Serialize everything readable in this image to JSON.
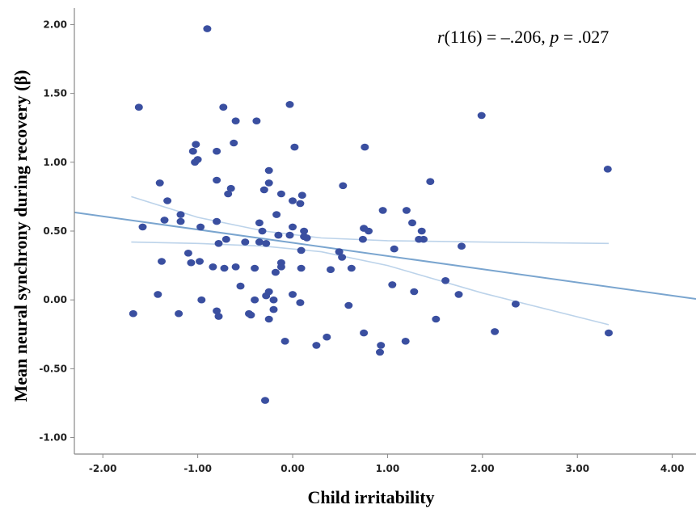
{
  "chart_data": {
    "type": "scatter",
    "title": "",
    "xlabel": "Child irritability",
    "ylabel": "Mean neural synchrony  during recovery  (β)",
    "annotation": {
      "r_symbol": "r",
      "r_value": "(116) = –.206, ",
      "p_symbol": "p",
      "p_value": " = .027"
    },
    "xlim": [
      -2.3,
      4.25
    ],
    "ylim": [
      -1.12,
      2.12
    ],
    "xticks": [
      -2,
      -1,
      0,
      1,
      2,
      3,
      4
    ],
    "xtick_labels": [
      "-2.00",
      "-1.00",
      "0.00",
      "1.00",
      "2.00",
      "3.00",
      "4.00"
    ],
    "yticks": [
      -1,
      -0.5,
      0,
      0.5,
      1,
      1.5,
      2
    ],
    "ytick_labels": [
      "-1.00",
      "-0.50",
      "0.00",
      "0.50",
      "1.00",
      "1.50",
      "2.00"
    ],
    "grid": false,
    "colors": {
      "points": "#3a4fa0",
      "fit_line": "#7aa5cf",
      "ci_band": "#bcd3ea",
      "axis": "#888888"
    },
    "fit_line": {
      "slope": -0.096,
      "intercept": 0.415
    },
    "ci_upper": {
      "x": [
        -1.7,
        -1.0,
        -0.3,
        0.3,
        1.0,
        2.0,
        3.33
      ],
      "y": [
        0.75,
        0.6,
        0.5,
        0.45,
        0.43,
        0.42,
        0.41
      ]
    },
    "ci_lower": {
      "x": [
        -1.7,
        -1.0,
        -0.3,
        0.3,
        1.0,
        2.0,
        3.33
      ],
      "y": [
        0.42,
        0.41,
        0.39,
        0.35,
        0.25,
        0.05,
        -0.18
      ]
    },
    "points": [
      [
        -0.9,
        1.97
      ],
      [
        -1.62,
        1.4
      ],
      [
        -0.73,
        1.4
      ],
      [
        -0.03,
        1.42
      ],
      [
        1.99,
        1.34
      ],
      [
        -0.6,
        1.3
      ],
      [
        -0.38,
        1.3
      ],
      [
        -0.62,
        1.14
      ],
      [
        -1.02,
        1.13
      ],
      [
        0.02,
        1.11
      ],
      [
        0.76,
        1.11
      ],
      [
        -1.05,
        1.08
      ],
      [
        -0.8,
        1.08
      ],
      [
        -1.0,
        1.02
      ],
      [
        -1.03,
        1.0
      ],
      [
        -0.25,
        0.94
      ],
      [
        3.32,
        0.95
      ],
      [
        -1.4,
        0.85
      ],
      [
        -0.8,
        0.87
      ],
      [
        -0.25,
        0.85
      ],
      [
        1.45,
        0.86
      ],
      [
        0.53,
        0.83
      ],
      [
        -0.65,
        0.81
      ],
      [
        -0.3,
        0.8
      ],
      [
        -0.68,
        0.77
      ],
      [
        -0.12,
        0.77
      ],
      [
        0.1,
        0.76
      ],
      [
        -1.32,
        0.72
      ],
      [
        0.0,
        0.72
      ],
      [
        0.08,
        0.7
      ],
      [
        0.95,
        0.65
      ],
      [
        1.2,
        0.65
      ],
      [
        -1.18,
        0.62
      ],
      [
        -0.17,
        0.62
      ],
      [
        -1.35,
        0.58
      ],
      [
        -1.18,
        0.57
      ],
      [
        -0.8,
        0.57
      ],
      [
        -0.35,
        0.56
      ],
      [
        1.26,
        0.56
      ],
      [
        -1.58,
        0.53
      ],
      [
        0.0,
        0.53
      ],
      [
        0.75,
        0.52
      ],
      [
        0.12,
        0.5
      ],
      [
        -0.32,
        0.5
      ],
      [
        1.36,
        0.5
      ],
      [
        -0.97,
        0.53
      ],
      [
        -0.15,
        0.47
      ],
      [
        -0.03,
        0.47
      ],
      [
        0.12,
        0.46
      ],
      [
        0.15,
        0.45
      ],
      [
        -0.7,
        0.44
      ],
      [
        0.8,
        0.5
      ],
      [
        0.74,
        0.44
      ],
      [
        1.33,
        0.44
      ],
      [
        1.38,
        0.44
      ],
      [
        -0.35,
        0.42
      ],
      [
        -0.5,
        0.42
      ],
      [
        -0.28,
        0.41
      ],
      [
        -0.78,
        0.41
      ],
      [
        1.78,
        0.39
      ],
      [
        1.07,
        0.37
      ],
      [
        0.09,
        0.36
      ],
      [
        0.49,
        0.35
      ],
      [
        -1.1,
        0.34
      ],
      [
        0.52,
        0.31
      ],
      [
        -1.38,
        0.28
      ],
      [
        -0.98,
        0.28
      ],
      [
        -1.07,
        0.27
      ],
      [
        -0.12,
        0.27
      ],
      [
        -0.84,
        0.24
      ],
      [
        -0.6,
        0.24
      ],
      [
        -0.4,
        0.23
      ],
      [
        -0.72,
        0.23
      ],
      [
        0.09,
        0.23
      ],
      [
        -0.12,
        0.24
      ],
      [
        0.4,
        0.22
      ],
      [
        0.62,
        0.23
      ],
      [
        -0.18,
        0.2
      ],
      [
        1.61,
        0.14
      ],
      [
        -0.55,
        0.1
      ],
      [
        1.05,
        0.11
      ],
      [
        -0.25,
        0.06
      ],
      [
        1.28,
        0.06
      ],
      [
        -1.42,
        0.04
      ],
      [
        -0.28,
        0.03
      ],
      [
        0.0,
        0.04
      ],
      [
        -0.2,
        0.0
      ],
      [
        -0.96,
        0.0
      ],
      [
        1.75,
        0.04
      ],
      [
        -0.4,
        0.0
      ],
      [
        0.08,
        -0.02
      ],
      [
        0.59,
        -0.04
      ],
      [
        2.35,
        -0.03
      ],
      [
        -0.2,
        -0.07
      ],
      [
        -0.8,
        -0.08
      ],
      [
        -1.68,
        -0.1
      ],
      [
        -1.2,
        -0.1
      ],
      [
        -0.46,
        -0.1
      ],
      [
        -0.44,
        -0.11
      ],
      [
        -0.78,
        -0.12
      ],
      [
        -0.25,
        -0.14
      ],
      [
        1.51,
        -0.14
      ],
      [
        0.36,
        -0.27
      ],
      [
        0.75,
        -0.24
      ],
      [
        2.13,
        -0.23
      ],
      [
        3.33,
        -0.24
      ],
      [
        -0.08,
        -0.3
      ],
      [
        0.25,
        -0.33
      ],
      [
        0.93,
        -0.33
      ],
      [
        1.19,
        -0.3
      ],
      [
        0.92,
        -0.38
      ],
      [
        -0.29,
        -0.73
      ]
    ]
  }
}
